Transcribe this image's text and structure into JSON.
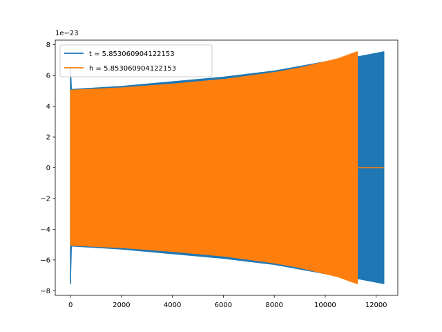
{
  "chart_data": {
    "type": "line",
    "title": "",
    "xlabel": "",
    "ylabel": "",
    "y_offset_label": "1e−23",
    "xlim": [
      -600,
      12850
    ],
    "ylim": [
      -8.3,
      8.3
    ],
    "x_ticks": [
      0,
      2000,
      4000,
      6000,
      8000,
      10000,
      12000
    ],
    "x_tick_labels": [
      "0",
      "2000",
      "4000",
      "6000",
      "8000",
      "10000",
      "12000"
    ],
    "y_ticks": [
      -8,
      -6,
      -4,
      -2,
      0,
      2,
      4,
      6,
      8
    ],
    "y_tick_labels": [
      "−8",
      "−6",
      "−4",
      "−2",
      "0",
      "2",
      "4",
      "6",
      "8"
    ],
    "grid": false,
    "legend_position": "upper-left",
    "series": [
      {
        "name": "t = 5.853060904122153",
        "color": "#1f77b4",
        "envelope": {
          "x": [
            0,
            40,
            2000,
            4000,
            6000,
            8000,
            10000,
            11200,
            12300
          ],
          "upper": [
            6.6,
            5.1,
            5.3,
            5.6,
            5.9,
            6.3,
            6.9,
            7.2,
            7.55
          ],
          "lower": [
            -7.55,
            -5.1,
            -5.3,
            -5.6,
            -5.9,
            -6.3,
            -6.9,
            -7.2,
            -7.55
          ]
        }
      },
      {
        "name": "h = 5.853060904122153",
        "color": "#ff7f0e",
        "envelope": {
          "x": [
            0,
            2000,
            4000,
            6000,
            8000,
            9000,
            10000,
            10500,
            11000,
            11260
          ],
          "upper": [
            5.05,
            5.2,
            5.45,
            5.75,
            6.2,
            6.5,
            6.9,
            7.1,
            7.4,
            7.55
          ],
          "lower": [
            -5.05,
            -5.2,
            -5.45,
            -5.75,
            -6.2,
            -6.5,
            -6.9,
            -7.1,
            -7.4,
            -7.55
          ]
        },
        "flat_tail": {
          "x": [
            11260,
            12300
          ],
          "y": 0
        }
      }
    ]
  }
}
